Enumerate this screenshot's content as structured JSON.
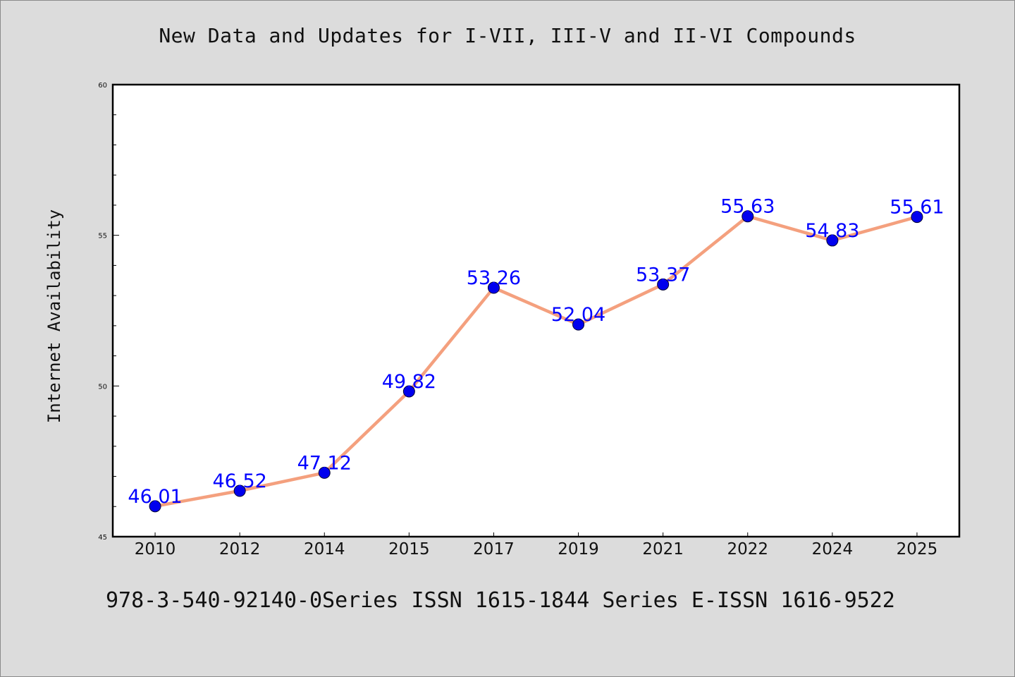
{
  "chart_data": {
    "type": "line",
    "title": "New Data and Updates for I-VII, III-V and II-VI Compounds",
    "xlabel": "",
    "ylabel": "Internet Availability",
    "categories": [
      "2010",
      "2012",
      "2014",
      "2015",
      "2017",
      "2019",
      "2021",
      "2022",
      "2024",
      "2025"
    ],
    "series": [
      {
        "values": [
          46.01,
          46.52,
          47.12,
          49.82,
          53.26,
          52.04,
          53.37,
          55.63,
          54.83,
          55.61
        ],
        "labels": [
          "46.01",
          "46.52",
          "47.12",
          "49.82",
          "53.26",
          "52.04",
          "53.37",
          "55.63",
          "54.83",
          "55.61"
        ]
      }
    ],
    "ylim": [
      45,
      60
    ],
    "yticks": [
      "45",
      "50",
      "55",
      "60"
    ],
    "grid": false,
    "legend": "none",
    "colors": {
      "line": "#f4a07e",
      "marker": "#0000ee",
      "label": "#0000ff",
      "plot_bg": "#ffffff",
      "page_bg": "#dcdcdc"
    }
  },
  "footer": {
    "text": "978-3-540-92140-0Series ISSN 1615-1844 Series E-ISSN 1616-9522"
  }
}
